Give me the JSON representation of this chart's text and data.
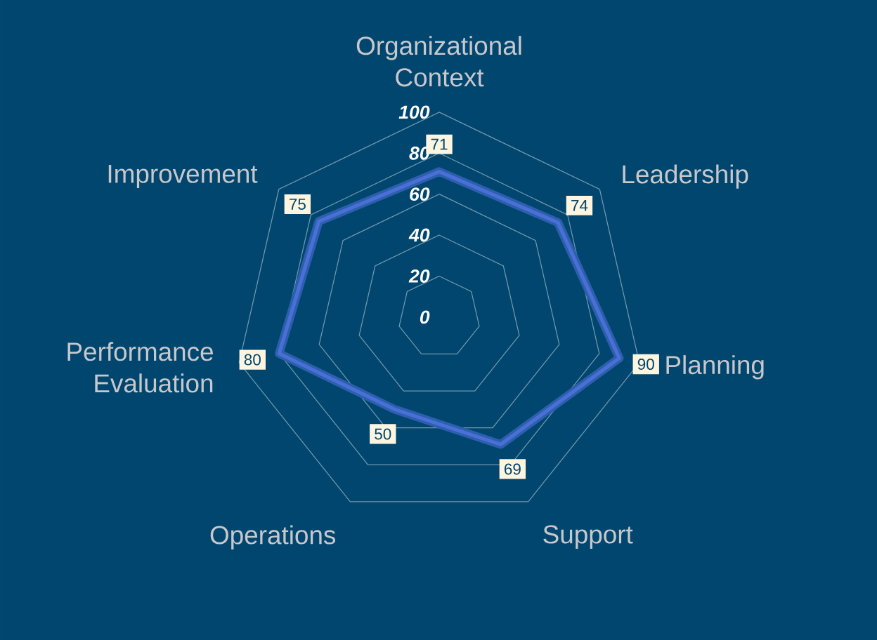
{
  "chart_data": {
    "type": "radar",
    "categories": [
      "Organizational Context",
      "Leadership",
      "Planning",
      "Support",
      "Operations",
      "Performance Evaluation",
      "Improvement"
    ],
    "series": [
      {
        "color": "#4a6fd6",
        "values": [
          71,
          74,
          90,
          69,
          50,
          80,
          75
        ]
      }
    ],
    "ylim": [
      0,
      100
    ],
    "yticks": [
      0,
      20,
      40,
      60,
      80,
      100
    ],
    "grid": true,
    "data_labels": true
  }
}
